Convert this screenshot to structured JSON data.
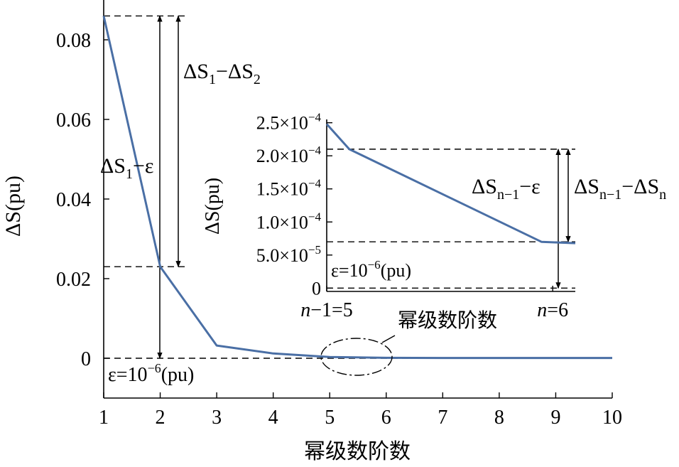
{
  "chart_data": [
    {
      "type": "line",
      "xlabel": "幂级数阶数",
      "ylabel": "ΔS(pu)",
      "x": [
        1,
        2,
        3,
        4,
        5,
        6,
        7,
        8,
        9,
        10
      ],
      "series": [
        {
          "values": [
            0.086,
            0.023,
            0.0032,
            0.0012,
            0.0003,
            0.0001,
            8e-05,
            7e-05,
            7e-05,
            7e-05
          ]
        }
      ],
      "xlim": [
        1,
        10
      ],
      "ylim": [
        -0.01,
        0.09
      ],
      "xticks": [
        1,
        2,
        3,
        4,
        5,
        6,
        7,
        8,
        9,
        10
      ],
      "yticks": [
        {
          "value": 0,
          "label": "0"
        },
        {
          "value": 0.02,
          "label": "0.02"
        },
        {
          "value": 0.04,
          "label": "0.04"
        },
        {
          "value": 0.06,
          "label": "0.06"
        },
        {
          "value": 0.08,
          "label": "0.08"
        }
      ],
      "annotations": {
        "level_top": 0.086,
        "level_mid": 0.023,
        "level_eps": 0,
        "delta12_label": {
          "base": "ΔS",
          "sub1": "1",
          "mid": "−ΔS",
          "sub2": "2"
        },
        "delta1eps_label": {
          "base": "ΔS",
          "sub1": "1",
          "mid": "−ε"
        },
        "eps_label": {
          "pre": "ε=10",
          "sup": "−6",
          "post": "(pu)"
        },
        "ellipse_label": "幂级数阶数"
      },
      "color": "#4a6fa5"
    },
    {
      "type": "line",
      "ylabel": "ΔS(pu)",
      "x": [
        5,
        6
      ],
      "series": [
        {
          "x": [
            5,
            5.1,
            5.95,
            6.1
          ],
          "values": [
            0.000248,
            0.00021,
            7e-05,
            6.8e-05
          ]
        }
      ],
      "xlim": [
        5,
        6.1
      ],
      "ylim": [
        -5e-06,
        0.000255
      ],
      "xticks": [
        {
          "value": 5,
          "label_pre": "n",
          "label_post": "−1=5"
        },
        {
          "value": 6,
          "label_pre": "n",
          "label_post": "=6"
        }
      ],
      "yticks": [
        {
          "value": 0,
          "coef": "0",
          "sup": ""
        },
        {
          "value": 5e-05,
          "coef": "5.0×10",
          "sup": "−5"
        },
        {
          "value": 0.0001,
          "coef": "1.0×10",
          "sup": "−4"
        },
        {
          "value": 0.00015,
          "coef": "1.5×10",
          "sup": "−4"
        },
        {
          "value": 0.0002,
          "coef": "2.0×10",
          "sup": "−4"
        },
        {
          "value": 0.00025,
          "coef": "2.5×10",
          "sup": "−4"
        }
      ],
      "annotations": {
        "level_top": 0.00021,
        "level_mid": 7e-05,
        "level_eps": 0,
        "deltaN_label": {
          "base": "ΔS",
          "sub1": "n−1",
          "mid": "−ΔS",
          "sub2": "n"
        },
        "deltaNeps_label": {
          "base": "ΔS",
          "sub1": "n−1",
          "mid": "−ε"
        },
        "eps_label": {
          "pre": "ε=10",
          "sup": "−6",
          "post": "(pu)"
        }
      },
      "color": "#4a6fa5"
    }
  ]
}
